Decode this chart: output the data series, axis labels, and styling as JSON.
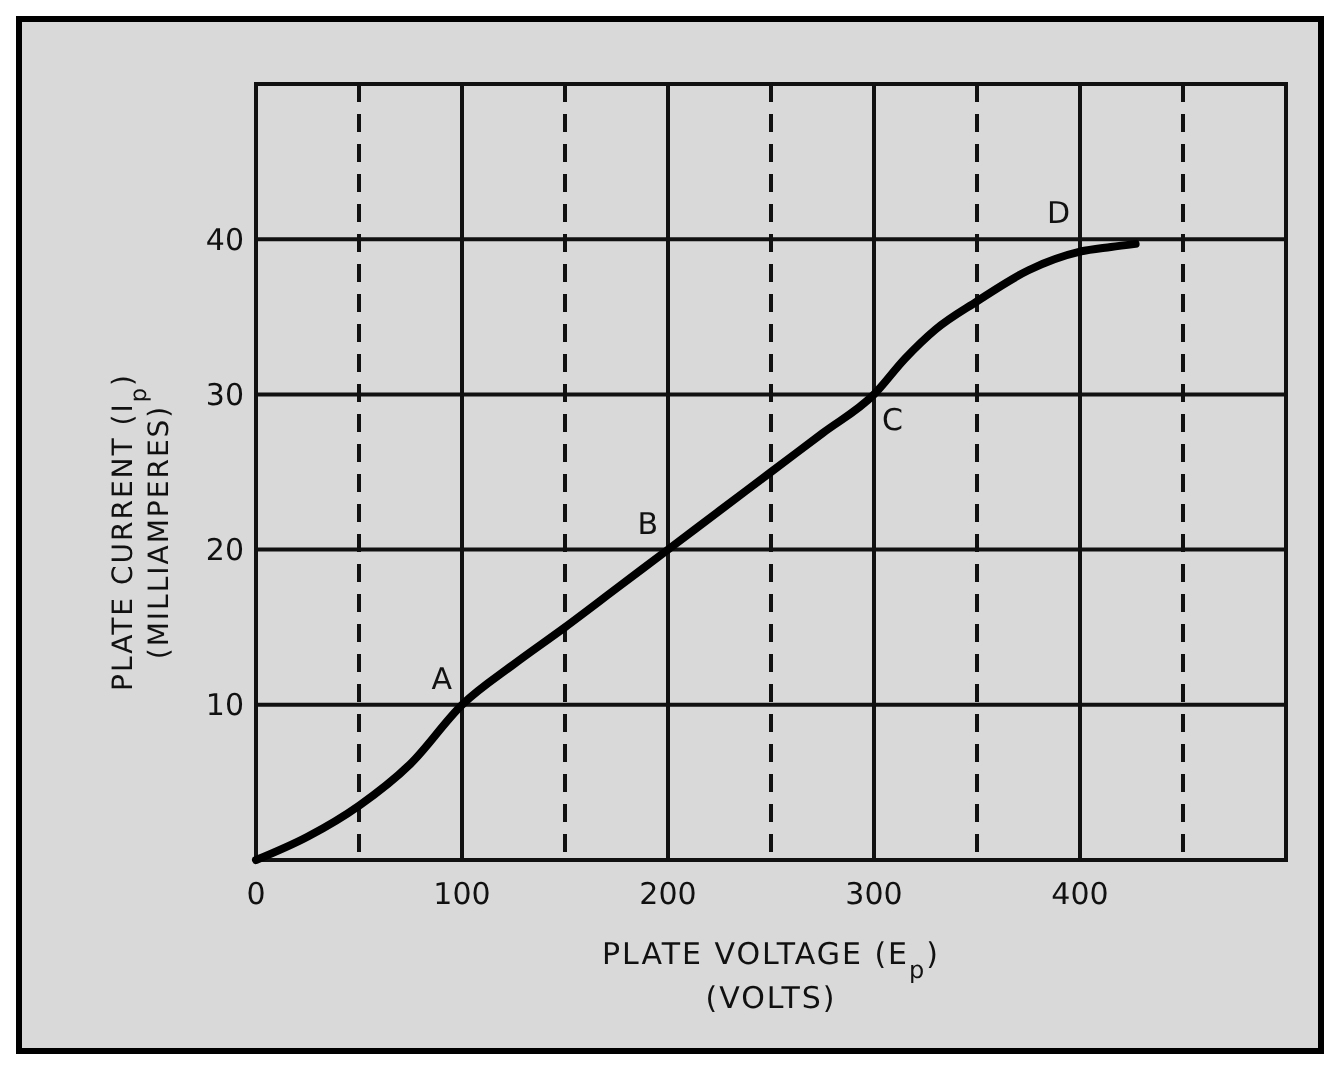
{
  "chart_data": {
    "type": "line",
    "xlabel": "PLATE VOLTAGE (E$_{p}$)\n(VOLTS)",
    "ylabel": "PLATE CURRENT (I$_{p}$)\n(MILLIAMPERES)",
    "x": [
      0,
      25,
      50,
      75,
      100,
      125,
      150,
      175,
      200,
      225,
      250,
      275,
      300,
      315,
      330,
      350,
      375,
      400,
      415,
      427
    ],
    "series": [
      {
        "color": "#000000",
        "values": [
          0,
          1.5,
          3.5,
          6.2,
          10,
          12.6,
          15,
          17.5,
          20,
          22.5,
          25,
          27.5,
          30,
          32.3,
          34.2,
          36,
          38,
          39.2,
          39.5,
          39.7
        ]
      }
    ],
    "xlim": [
      0,
      500
    ],
    "ylim": [
      0,
      50
    ],
    "xticks": [
      0,
      100,
      200,
      300,
      400,
      {
        "value": 500,
        "label": null
      }
    ],
    "yticks": [
      {
        "value": 0,
        "label": null
      },
      10,
      20,
      30,
      40,
      {
        "value": 50,
        "label": null
      }
    ],
    "grid": true,
    "marker": "none",
    "line_style": "solid",
    "ref_lines": [
      {
        "axis": "x",
        "value": 50,
        "line_style": "dashed"
      },
      {
        "axis": "x",
        "value": 150,
        "line_style": "dashed"
      },
      {
        "axis": "x",
        "value": 250,
        "line_style": "dashed"
      },
      {
        "axis": "x",
        "value": 350,
        "line_style": "dashed"
      },
      {
        "axis": "x",
        "value": 450,
        "line_style": "dashed"
      }
    ],
    "annotations": [
      {
        "text": "A",
        "x": 100,
        "y": 10
      },
      {
        "text": "B",
        "x": 200,
        "y": 20
      },
      {
        "text": "C",
        "x": 300,
        "y": 30
      },
      {
        "text": "D",
        "x": 400,
        "y": 40
      }
    ]
  }
}
